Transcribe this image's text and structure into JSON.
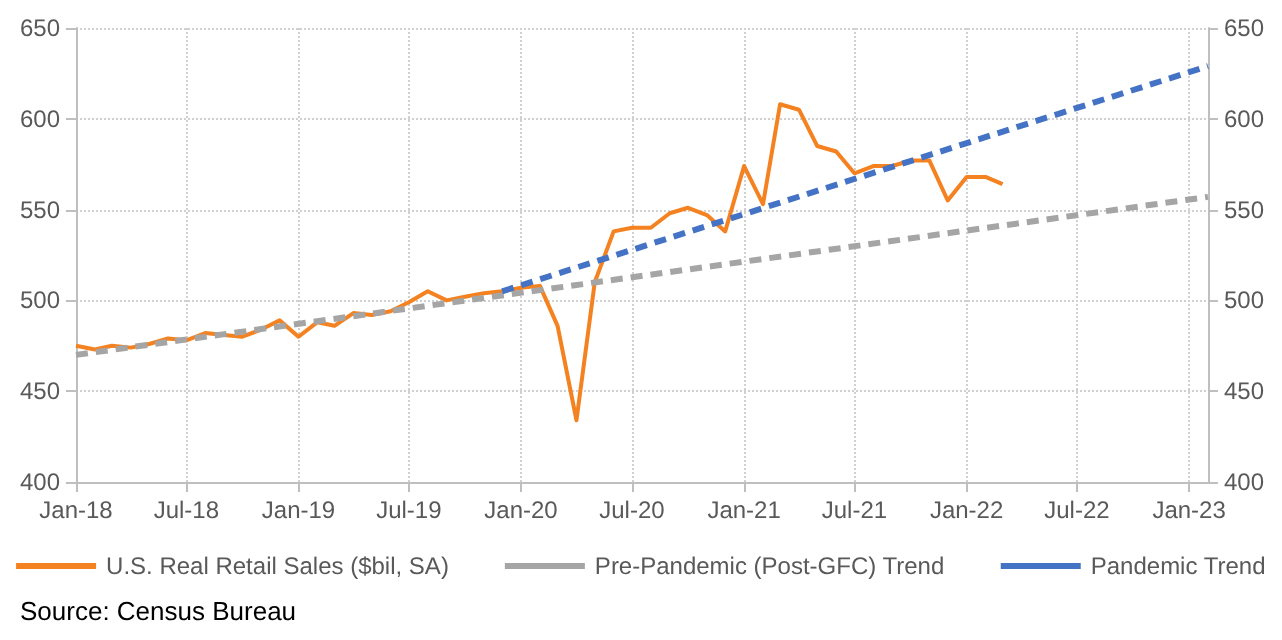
{
  "chart_data": {
    "type": "line",
    "x": [
      "2018-01",
      "2018-02",
      "2018-03",
      "2018-04",
      "2018-05",
      "2018-06",
      "2018-07",
      "2018-08",
      "2018-09",
      "2018-10",
      "2018-11",
      "2018-12",
      "2019-01",
      "2019-02",
      "2019-03",
      "2019-04",
      "2019-05",
      "2019-06",
      "2019-07",
      "2019-08",
      "2019-09",
      "2019-10",
      "2019-11",
      "2019-12",
      "2020-01",
      "2020-02",
      "2020-03",
      "2020-04",
      "2020-05",
      "2020-06",
      "2020-07",
      "2020-08",
      "2020-09",
      "2020-10",
      "2020-11",
      "2020-12",
      "2021-01",
      "2021-02",
      "2021-03",
      "2021-04",
      "2021-05",
      "2021-06",
      "2021-07",
      "2021-08",
      "2021-09",
      "2021-10",
      "2021-11",
      "2021-12",
      "2022-01",
      "2022-02",
      "2022-03"
    ],
    "series": [
      {
        "name": "U.S. Real Retail Sales ($bil, SA)",
        "color": "#f58220",
        "line_style": "solid",
        "values": [
          475,
          473,
          475,
          474,
          476,
          479,
          478,
          482,
          481,
          480,
          484,
          489,
          480,
          488,
          486,
          493,
          492,
          494,
          499,
          505,
          500,
          502,
          504,
          505,
          507,
          508,
          486,
          434,
          510,
          538,
          540,
          540,
          548,
          551,
          547,
          538,
          574,
          553,
          608,
          605,
          585,
          582,
          570,
          574,
          574,
          577,
          577,
          555,
          568,
          568,
          564
        ]
      },
      {
        "name": "Pre-Pandemic (Post-GFC) Trend",
        "color": "#a5a5a5",
        "line_style": "dashed",
        "x": [
          "2018-01",
          "2023-02"
        ],
        "values": [
          470,
          557
        ]
      },
      {
        "name": "Pandemic Trend",
        "color": "#4472c4",
        "line_style": "dashed",
        "x": [
          "2019-12",
          "2023-02"
        ],
        "values": [
          505,
          629
        ]
      }
    ],
    "xlim": [
      "2018-01",
      "2023-02"
    ],
    "xticks": [
      {
        "value": "2018-01",
        "label": "Jan-18"
      },
      {
        "value": "2018-07",
        "label": "Jul-18"
      },
      {
        "value": "2019-01",
        "label": "Jan-19"
      },
      {
        "value": "2019-07",
        "label": "Jul-19"
      },
      {
        "value": "2020-01",
        "label": "Jan-20"
      },
      {
        "value": "2020-07",
        "label": "Jul-20"
      },
      {
        "value": "2021-01",
        "label": "Jan-21"
      },
      {
        "value": "2021-07",
        "label": "Jul-21"
      },
      {
        "value": "2022-01",
        "label": "Jan-22"
      },
      {
        "value": "2022-07",
        "label": "Jul-22"
      },
      {
        "value": "2023-01",
        "label": "Jan-23"
      }
    ],
    "ylim": [
      400,
      650
    ],
    "yticks": [
      400,
      450,
      500,
      550,
      600,
      650
    ],
    "y2lim": [
      400,
      650
    ],
    "y2ticks": [
      400,
      450,
      500,
      550,
      600,
      650
    ],
    "grid": true,
    "legend": "bottom",
    "marker": "none",
    "annotations": [
      "Source: Census Bureau"
    ]
  }
}
